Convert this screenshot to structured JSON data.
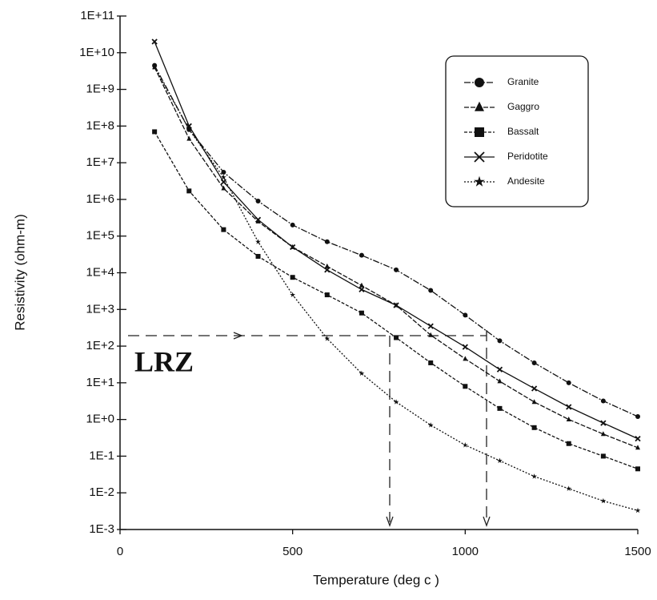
{
  "chart_data": {
    "type": "line",
    "x_label": "Temperature (deg c )",
    "y_label": "Resistivity (ohm-m)",
    "annotation": "LRZ",
    "log_y": true,
    "x": [
      100,
      200,
      300,
      400,
      500,
      600,
      700,
      800,
      900,
      1000,
      1100,
      1200,
      1300,
      1400,
      1500
    ],
    "series": [
      {
        "name": "Granite",
        "color": "#111111",
        "marker": "circle",
        "values": [
          4500000000,
          80000000,
          5500000,
          900000,
          200000,
          70000,
          30000,
          12000,
          3300,
          700,
          140,
          35,
          10,
          3.2,
          1.2
        ]
      },
      {
        "name": "Gaggro",
        "color": "#111111",
        "marker": "triangle",
        "values": [
          4000000000,
          45000000,
          2000000,
          250000,
          50000,
          15000,
          4500,
          1300,
          200,
          45,
          11,
          3,
          1,
          0.4,
          0.17
        ]
      },
      {
        "name": "Bassalt",
        "color": "#111111",
        "marker": "square",
        "values": [
          70000000,
          1700000,
          150000,
          28000,
          7500,
          2500,
          800,
          170,
          35,
          8,
          2,
          0.6,
          0.22,
          0.1,
          0.045
        ]
      },
      {
        "name": "Peridotite",
        "color": "#111111",
        "marker": "x",
        "values": [
          20000000000,
          100000000,
          3000000,
          280000,
          50000,
          12000,
          3500,
          1300,
          350,
          95,
          23,
          7,
          2.2,
          0.8,
          0.3
        ]
      },
      {
        "name": "Andesite",
        "color": "#111111",
        "marker": "star",
        "values": [
          4000000000,
          80000000,
          4000000,
          70000,
          2500,
          160,
          18,
          3,
          0.7,
          0.2,
          0.075,
          0.028,
          0.013,
          0.006,
          0.0033
        ]
      }
    ],
    "xlim": [
      0,
      1500
    ],
    "xticks": [
      0,
      500,
      1000,
      1500
    ],
    "ylim": [
      0.001,
      100000000000
    ],
    "yticks": [
      {
        "value": 100000000000,
        "label": "1E+11"
      },
      {
        "value": 10000000000,
        "label": "1E+10"
      },
      {
        "value": 1000000000,
        "label": "1E+9"
      },
      {
        "value": 100000000,
        "label": "1E+8"
      },
      {
        "value": 10000000,
        "label": "1E+7"
      },
      {
        "value": 1000000,
        "label": "1E+6"
      },
      {
        "value": 100000,
        "label": "1E+5"
      },
      {
        "value": 10000,
        "label": "1E+4"
      },
      {
        "value": 1000,
        "label": "1E+3"
      },
      {
        "value": 100,
        "label": "1E+2"
      },
      {
        "value": 10,
        "label": "1E+1"
      },
      {
        "value": 1,
        "label": "1E+0"
      },
      {
        "value": 0.1,
        "label": "1E-1"
      },
      {
        "value": 0.01,
        "label": "1E-2"
      },
      {
        "value": 0.001,
        "label": "1E-3"
      }
    ],
    "legend": "upper right"
  }
}
